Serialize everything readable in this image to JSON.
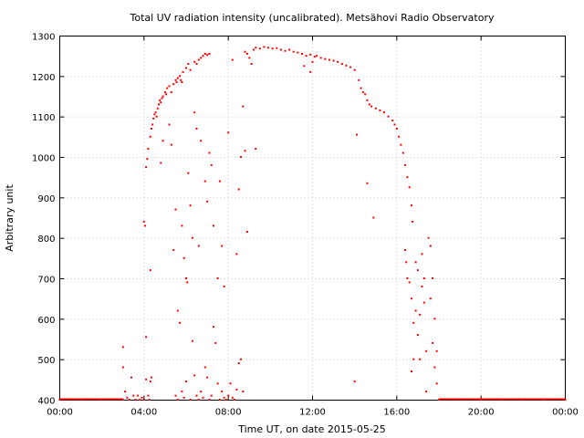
{
  "chart_data": {
    "type": "scatter",
    "title": "Total UV radiation intensity (uncalibrated). Metsähovi Radio Observatory",
    "xlabel": "Time UT, on date 2015-05-25",
    "ylabel": "Arbitrary unit",
    "xlim": [
      0,
      24
    ],
    "ylim": [
      400,
      1300
    ],
    "x_ticks": [
      0,
      4,
      8,
      12,
      16,
      20,
      24
    ],
    "x_tick_labels": [
      "00:00",
      "04:00",
      "08:00",
      "12:00",
      "16:00",
      "20:00",
      "00:00"
    ],
    "y_ticks": [
      400,
      500,
      600,
      700,
      800,
      900,
      1000,
      1100,
      1200,
      1300
    ],
    "y_tick_labels": [
      "400",
      "500",
      "600",
      "700",
      "800",
      "900",
      "1000",
      "1100",
      "1200",
      "1300"
    ],
    "grid": true,
    "color": "#ff0000",
    "series": [
      {
        "points": [
          [
            0.0,
            400
          ],
          [
            1.0,
            400
          ],
          [
            2.0,
            400
          ],
          [
            3.0,
            400
          ],
          [
            3.0,
            530
          ],
          [
            3.0,
            480
          ],
          [
            3.1,
            420
          ],
          [
            3.2,
            405
          ],
          [
            3.3,
            400
          ],
          [
            3.4,
            455
          ],
          [
            3.5,
            410
          ],
          [
            3.6,
            400
          ],
          [
            3.7,
            410
          ],
          [
            3.8,
            400
          ],
          [
            3.9,
            405
          ],
          [
            4.0,
            400
          ],
          [
            4.0,
            840
          ],
          [
            4.05,
            830
          ],
          [
            4.1,
            555
          ],
          [
            4.1,
            450
          ],
          [
            4.2,
            410
          ],
          [
            4.25,
            400
          ],
          [
            4.3,
            445
          ],
          [
            4.35,
            455
          ],
          [
            4.3,
            720
          ],
          [
            4.1,
            975
          ],
          [
            4.15,
            995
          ],
          [
            4.2,
            1020
          ],
          [
            4.3,
            1050
          ],
          [
            4.35,
            1070
          ],
          [
            4.4,
            1080
          ],
          [
            4.45,
            1095
          ],
          [
            4.5,
            1105
          ],
          [
            4.55,
            1110
          ],
          [
            4.6,
            1100
          ],
          [
            4.65,
            1120
          ],
          [
            4.7,
            1130
          ],
          [
            4.75,
            1140
          ],
          [
            4.8,
            1135
          ],
          [
            4.85,
            1145
          ],
          [
            4.9,
            1150
          ],
          [
            5.0,
            1160
          ],
          [
            5.05,
            1155
          ],
          [
            5.1,
            1170
          ],
          [
            5.2,
            1175
          ],
          [
            5.3,
            1160
          ],
          [
            5.4,
            1180
          ],
          [
            5.5,
            1190
          ],
          [
            5.55,
            1185
          ],
          [
            5.6,
            1195
          ],
          [
            5.7,
            1200
          ],
          [
            5.75,
            1190
          ],
          [
            5.8,
            1185
          ],
          [
            5.85,
            1210
          ],
          [
            6.0,
            1220
          ],
          [
            6.1,
            1230
          ],
          [
            6.2,
            1215
          ],
          [
            6.4,
            1235
          ],
          [
            6.5,
            1230
          ],
          [
            6.6,
            1240
          ],
          [
            6.7,
            1245
          ],
          [
            6.8,
            1250
          ],
          [
            6.9,
            1255
          ],
          [
            7.0,
            1252
          ],
          [
            7.1,
            1255
          ],
          [
            4.8,
            985
          ],
          [
            4.9,
            1040
          ],
          [
            5.2,
            1080
          ],
          [
            5.3,
            1030
          ],
          [
            5.4,
            770
          ],
          [
            5.5,
            870
          ],
          [
            5.6,
            620
          ],
          [
            5.7,
            590
          ],
          [
            5.8,
            830
          ],
          [
            5.9,
            750
          ],
          [
            6.0,
            700
          ],
          [
            6.05,
            690
          ],
          [
            6.1,
            960
          ],
          [
            6.2,
            880
          ],
          [
            6.3,
            800
          ],
          [
            6.4,
            1110
          ],
          [
            6.5,
            1070
          ],
          [
            6.6,
            780
          ],
          [
            6.7,
            1040
          ],
          [
            6.9,
            940
          ],
          [
            7.0,
            890
          ],
          [
            7.1,
            1010
          ],
          [
            7.2,
            980
          ],
          [
            7.3,
            830
          ],
          [
            7.5,
            700
          ],
          [
            7.6,
            940
          ],
          [
            7.7,
            780
          ],
          [
            7.8,
            680
          ],
          [
            8.0,
            1060
          ],
          [
            5.5,
            410
          ],
          [
            5.6,
            400
          ],
          [
            5.8,
            420
          ],
          [
            5.9,
            405
          ],
          [
            6.0,
            445
          ],
          [
            6.2,
            400
          ],
          [
            6.3,
            545
          ],
          [
            6.4,
            460
          ],
          [
            6.5,
            410
          ],
          [
            6.6,
            400
          ],
          [
            6.7,
            420
          ],
          [
            6.8,
            405
          ],
          [
            6.9,
            480
          ],
          [
            7.0,
            455
          ],
          [
            7.1,
            400
          ],
          [
            7.2,
            410
          ],
          [
            7.3,
            580
          ],
          [
            7.4,
            540
          ],
          [
            7.5,
            440
          ],
          [
            7.6,
            400
          ],
          [
            7.7,
            420
          ],
          [
            7.8,
            405
          ],
          [
            7.9,
            400
          ],
          [
            8.0,
            410
          ],
          [
            8.1,
            440
          ],
          [
            8.2,
            405
          ],
          [
            8.3,
            400
          ],
          [
            8.4,
            425
          ],
          [
            8.5,
            490
          ],
          [
            8.6,
            500
          ],
          [
            8.7,
            420
          ],
          [
            8.2,
            1240
          ],
          [
            8.4,
            760
          ],
          [
            8.5,
            920
          ],
          [
            8.6,
            1000
          ],
          [
            8.7,
            1125
          ],
          [
            8.8,
            1015
          ],
          [
            8.9,
            815
          ],
          [
            9.0,
            1245
          ],
          [
            9.1,
            1230
          ],
          [
            8.8,
            1260
          ],
          [
            8.9,
            1255
          ],
          [
            9.3,
            1020
          ],
          [
            9.2,
            1265
          ],
          [
            9.3,
            1270
          ],
          [
            9.5,
            1268
          ],
          [
            9.7,
            1272
          ],
          [
            9.9,
            1270
          ],
          [
            10.1,
            1268
          ],
          [
            10.3,
            1269
          ],
          [
            10.5,
            1265
          ],
          [
            10.7,
            1262
          ],
          [
            10.9,
            1265
          ],
          [
            11.1,
            1260
          ],
          [
            11.3,
            1258
          ],
          [
            11.5,
            1255
          ],
          [
            11.7,
            1250
          ],
          [
            11.9,
            1253
          ],
          [
            12.1,
            1248
          ],
          [
            11.6,
            1225
          ],
          [
            11.9,
            1210
          ],
          [
            12.0,
            1235
          ],
          [
            12.2,
            1250
          ],
          [
            12.4,
            1245
          ],
          [
            12.6,
            1242
          ],
          [
            12.8,
            1240
          ],
          [
            13.0,
            1238
          ],
          [
            13.2,
            1235
          ],
          [
            13.4,
            1230
          ],
          [
            13.6,
            1226
          ],
          [
            13.8,
            1222
          ],
          [
            14.0,
            1215
          ],
          [
            14.2,
            1190
          ],
          [
            14.3,
            1170
          ],
          [
            14.4,
            1160
          ],
          [
            14.5,
            1155
          ],
          [
            14.6,
            1140
          ],
          [
            14.7,
            1130
          ],
          [
            14.8,
            1125
          ],
          [
            15.0,
            1120
          ],
          [
            15.2,
            1115
          ],
          [
            15.4,
            1110
          ],
          [
            15.6,
            1100
          ],
          [
            15.8,
            1090
          ],
          [
            15.9,
            1080
          ],
          [
            16.0,
            1070
          ],
          [
            16.1,
            1050
          ],
          [
            16.2,
            1030
          ],
          [
            16.3,
            1010
          ],
          [
            16.4,
            980
          ],
          [
            16.5,
            950
          ],
          [
            16.6,
            925
          ],
          [
            16.7,
            880
          ],
          [
            16.75,
            840
          ],
          [
            14.1,
            1055
          ],
          [
            14.6,
            935
          ],
          [
            14.9,
            850
          ],
          [
            14.0,
            445
          ],
          [
            16.4,
            770
          ],
          [
            16.45,
            740
          ],
          [
            16.5,
            700
          ],
          [
            16.6,
            690
          ],
          [
            16.7,
            650
          ],
          [
            16.8,
            590
          ],
          [
            16.9,
            740
          ],
          [
            17.0,
            720
          ],
          [
            17.0,
            560
          ],
          [
            17.1,
            610
          ],
          [
            17.2,
            680
          ],
          [
            17.2,
            760
          ],
          [
            17.3,
            700
          ],
          [
            17.3,
            640
          ],
          [
            17.4,
            520
          ],
          [
            17.4,
            420
          ],
          [
            17.5,
            800
          ],
          [
            17.6,
            780
          ],
          [
            17.6,
            650
          ],
          [
            17.7,
            700
          ],
          [
            17.7,
            540
          ],
          [
            17.8,
            600
          ],
          [
            17.8,
            480
          ],
          [
            17.9,
            520
          ],
          [
            17.9,
            440
          ],
          [
            16.9,
            620
          ],
          [
            17.1,
            500
          ],
          [
            16.7,
            470
          ],
          [
            16.8,
            500
          ],
          [
            18.0,
            400
          ],
          [
            19.0,
            400
          ],
          [
            20.0,
            400
          ],
          [
            21.0,
            400
          ],
          [
            22.0,
            400
          ],
          [
            23.0,
            400
          ],
          [
            24.0,
            400
          ]
        ]
      }
    ]
  }
}
